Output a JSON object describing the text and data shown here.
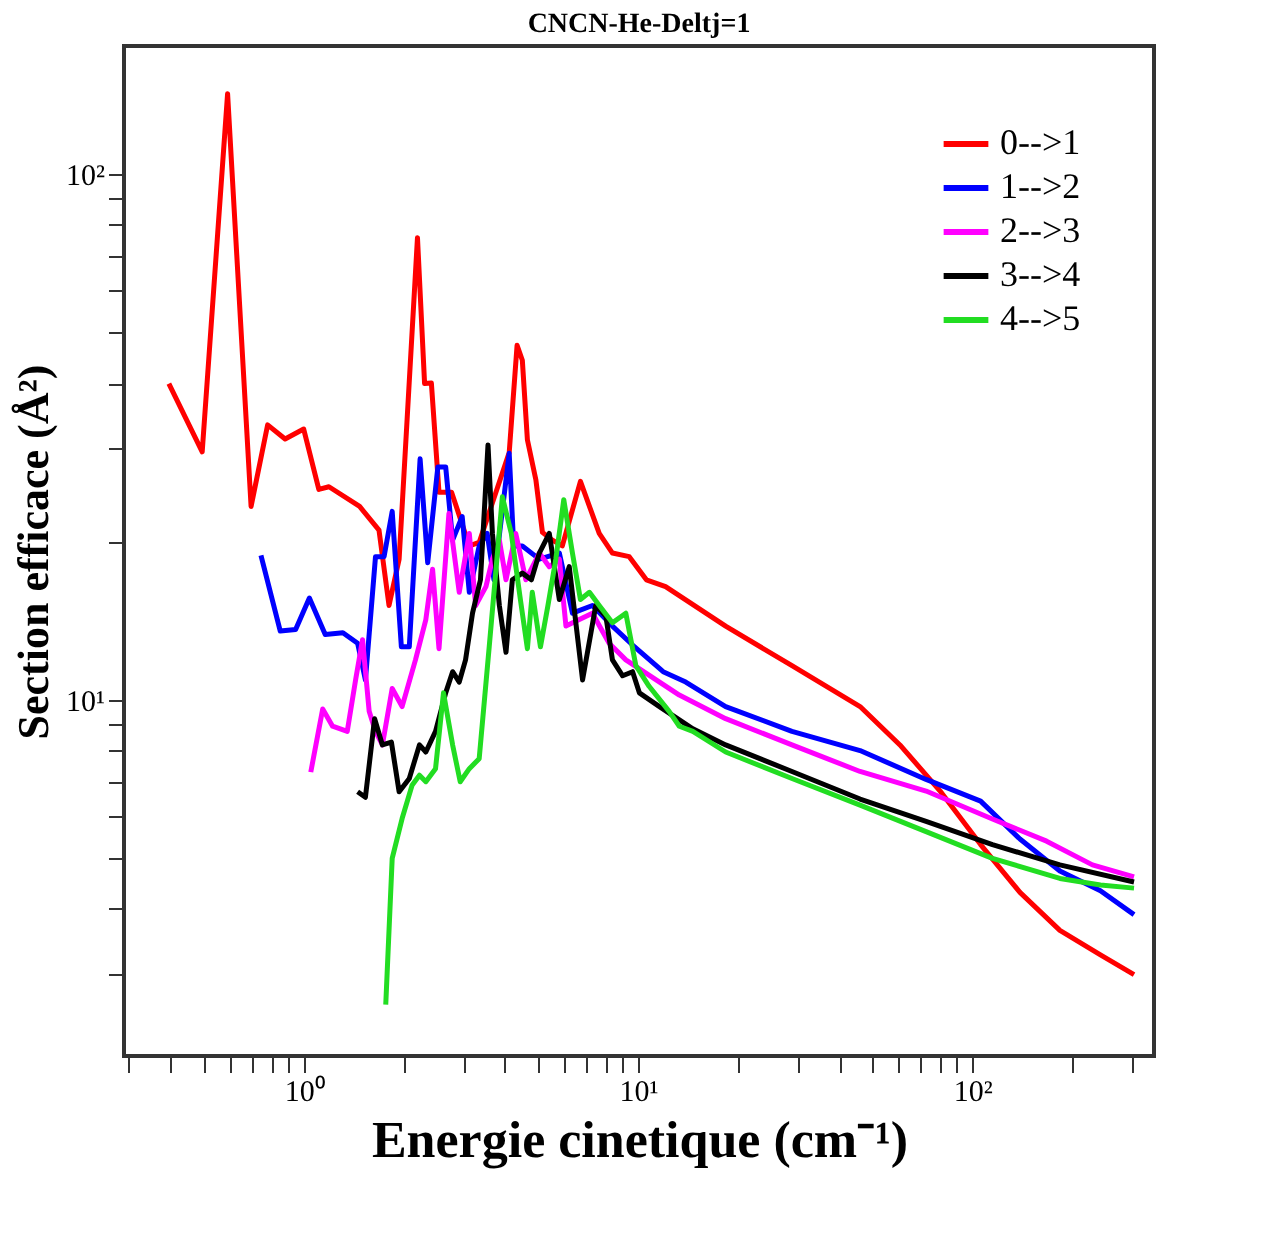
{
  "chart_data": {
    "type": "line",
    "title": "CNCN-He-Deltj=1",
    "xlabel": "Energie cinetique (cm⁻¹)",
    "ylabel": "Section efficace (Å²)",
    "log": "xy",
    "xlim": [
      0.29,
      350
    ],
    "ylim": [
      2.1,
      175
    ],
    "xticks": [
      {
        "value": 0.3,
        "label": null
      },
      {
        "value": 0.4,
        "label": null
      },
      {
        "value": 0.5,
        "label": null
      },
      {
        "value": 0.6,
        "label": null
      },
      {
        "value": 0.7,
        "label": null
      },
      {
        "value": 0.8,
        "label": null
      },
      {
        "value": 0.9,
        "label": null
      },
      {
        "value": 1,
        "label": "10⁰"
      },
      {
        "value": 2,
        "label": null
      },
      {
        "value": 3,
        "label": null
      },
      {
        "value": 4,
        "label": null
      },
      {
        "value": 5,
        "label": null
      },
      {
        "value": 6,
        "label": null
      },
      {
        "value": 7,
        "label": null
      },
      {
        "value": 8,
        "label": null
      },
      {
        "value": 9,
        "label": null
      },
      {
        "value": 10,
        "label": "10¹"
      },
      {
        "value": 20,
        "label": null
      },
      {
        "value": 30,
        "label": null
      },
      {
        "value": 40,
        "label": null
      },
      {
        "value": 50,
        "label": null
      },
      {
        "value": 60,
        "label": null
      },
      {
        "value": 70,
        "label": null
      },
      {
        "value": 80,
        "label": null
      },
      {
        "value": 90,
        "label": null
      },
      {
        "value": 100,
        "label": "10²"
      },
      {
        "value": 200,
        "label": null
      },
      {
        "value": 300,
        "label": null
      }
    ],
    "yticks": [
      {
        "value": 3,
        "label": null
      },
      {
        "value": 4,
        "label": null
      },
      {
        "value": 5,
        "label": null
      },
      {
        "value": 6,
        "label": null
      },
      {
        "value": 7,
        "label": null
      },
      {
        "value": 8,
        "label": null
      },
      {
        "value": 9,
        "label": null
      },
      {
        "value": 10,
        "label": "10¹"
      },
      {
        "value": 20,
        "label": null
      },
      {
        "value": 30,
        "label": null
      },
      {
        "value": 40,
        "label": null
      },
      {
        "value": 50,
        "label": null
      },
      {
        "value": 60,
        "label": null
      },
      {
        "value": 70,
        "label": null
      },
      {
        "value": 80,
        "label": null
      },
      {
        "value": 90,
        "label": null
      },
      {
        "value": 100,
        "label": "10²"
      }
    ],
    "grid": false,
    "legend": "top right",
    "marker": "none",
    "line_style": "solid",
    "series": [
      {
        "name": "0-->1",
        "color": "#ff0000",
        "x": [
          0.395,
          0.497,
          0.592,
          0.696,
          0.78,
          0.88,
          1.0,
          1.11,
          1.19,
          1.47,
          1.68,
          1.8,
          1.93,
          2.19,
          2.3,
          2.41,
          2.54,
          2.77,
          3.13,
          3.35,
          3.59,
          4.12,
          4.35,
          4.51,
          4.67,
          4.95,
          5.18,
          5.55,
          5.94,
          6.73,
          7.66,
          8.39,
          9.42,
          10.6,
          12.1,
          18.3,
          28.9,
          46.2,
          60.8,
          80.2,
          106,
          139,
          183,
          242,
          305
        ],
        "values": [
          39.9,
          29.6,
          142,
          23.3,
          33.3,
          31.3,
          32.7,
          25.1,
          25.4,
          23.3,
          21.0,
          15.1,
          18.5,
          75.6,
          39.9,
          40,
          24.8,
          24.8,
          19.6,
          19.9,
          22.7,
          29.5,
          47.2,
          44.2,
          31.2,
          26.2,
          20.8,
          20.1,
          19.6,
          26.0,
          20.7,
          19.0,
          18.7,
          16.9,
          16.4,
          13.8,
          11.6,
          9.7,
          8.2,
          6.7,
          5.3,
          4.3,
          3.64,
          3.27,
          3.0
        ]
      },
      {
        "name": "1-->2",
        "color": "#0000ff",
        "x": [
          0.745,
          0.851,
          0.946,
          1.04,
          1.16,
          1.31,
          1.45,
          1.53,
          1.64,
          1.74,
          1.84,
          1.96,
          2.07,
          2.23,
          2.35,
          2.52,
          2.66,
          2.79,
          2.98,
          3.13,
          3.35,
          3.54,
          3.71,
          4.12,
          4.25,
          4.51,
          5.07,
          5.82,
          6.37,
          7.31,
          8.39,
          9.64,
          11.9,
          13.9,
          18.3,
          28.9,
          46.2,
          72.8,
          106,
          139,
          183,
          242,
          305
        ],
        "values": [
          18.8,
          13.5,
          13.6,
          15.6,
          13.3,
          13.4,
          12.8,
          10.9,
          18.7,
          18.7,
          22.8,
          12.6,
          12.6,
          28.7,
          18.2,
          27.7,
          27.7,
          20.1,
          22.3,
          16.0,
          19.6,
          20.7,
          16.9,
          29.4,
          19.6,
          19.6,
          18.5,
          19.0,
          14.6,
          15.1,
          13.8,
          12.7,
          11.3,
          10.8,
          9.7,
          8.7,
          8.0,
          7.05,
          6.41,
          5.43,
          4.72,
          4.33,
          3.9
        ]
      },
      {
        "name": "2-->3",
        "color": "#ff00ff",
        "x": [
          1.05,
          1.14,
          1.22,
          1.35,
          1.43,
          1.5,
          1.57,
          1.64,
          1.72,
          1.84,
          1.97,
          2.16,
          2.32,
          2.43,
          2.54,
          2.72,
          2.92,
          3.13,
          3.27,
          3.51,
          3.67,
          3.85,
          4.03,
          4.31,
          4.62,
          5.07,
          5.43,
          5.82,
          6.09,
          6.68,
          7.31,
          8.2,
          9.2,
          13.3,
          18.3,
          28.9,
          46.2,
          72.8,
          115,
          167,
          229,
          305
        ],
        "values": [
          7.28,
          9.6,
          8.9,
          8.7,
          10.9,
          13.0,
          9.5,
          8.7,
          8.2,
          10.5,
          9.7,
          11.9,
          14.2,
          17.7,
          12.5,
          22.6,
          16.0,
          20.7,
          15.1,
          16.4,
          18.5,
          20.1,
          16.9,
          20.7,
          16.9,
          19.0,
          17.9,
          18.5,
          13.8,
          14.2,
          14.6,
          12.8,
          11.9,
          10.2,
          9.2,
          8.2,
          7.3,
          6.7,
          5.93,
          5.38,
          4.85,
          4.6
        ]
      },
      {
        "name": "3-->4",
        "color": "#000000",
        "x": [
          1.45,
          1.53,
          1.63,
          1.72,
          1.83,
          1.93,
          2.07,
          2.22,
          2.32,
          2.48,
          2.66,
          2.79,
          2.92,
          3.05,
          3.2,
          3.38,
          3.56,
          3.67,
          3.85,
          4.03,
          4.21,
          4.51,
          4.8,
          5.07,
          5.43,
          5.82,
          6.23,
          6.83,
          7.48,
          8.02,
          8.39,
          9.0,
          9.64,
          10.1,
          11.6,
          14.6,
          18.3,
          28.9,
          46.2,
          72.8,
          115,
          183,
          305
        ],
        "values": [
          6.68,
          6.52,
          9.2,
          8.2,
          8.3,
          6.68,
          7.08,
          8.2,
          7.95,
          8.7,
          10.3,
          11.3,
          10.8,
          11.9,
          14.6,
          16.9,
          30.5,
          20.7,
          15.1,
          12.3,
          16.9,
          17.4,
          16.9,
          19.0,
          20.7,
          15.5,
          17.9,
          10.9,
          15.1,
          14.4,
          11.9,
          11.1,
          11.3,
          10.3,
          9.7,
          8.8,
          8.2,
          7.3,
          6.47,
          5.87,
          5.3,
          4.85,
          4.5
        ]
      },
      {
        "name": "4-->5",
        "color": "#22dd22",
        "x": [
          1.76,
          1.84,
          1.97,
          2.11,
          2.22,
          2.32,
          2.48,
          2.62,
          2.79,
          2.94,
          3.13,
          3.35,
          3.59,
          3.93,
          4.18,
          4.45,
          4.67,
          4.83,
          5.11,
          5.38,
          5.68,
          6.0,
          6.37,
          6.73,
          7.16,
          7.66,
          8.39,
          9.2,
          9.86,
          10.8,
          12.4,
          13.3,
          14.6,
          18.3,
          28.9,
          46.2,
          72.8,
          115,
          183,
          242,
          305
        ],
        "values": [
          2.63,
          4.99,
          5.94,
          6.87,
          7.18,
          6.98,
          7.39,
          10.3,
          8.2,
          6.98,
          7.39,
          7.72,
          12.6,
          24.3,
          20.7,
          15.5,
          12.5,
          16.0,
          12.6,
          15.1,
          18.5,
          24.0,
          19.0,
          15.5,
          16.0,
          15.1,
          14.0,
          14.6,
          11.6,
          10.6,
          9.5,
          8.9,
          8.7,
          7.95,
          7.08,
          6.3,
          5.61,
          4.99,
          4.57,
          4.44,
          4.38
        ]
      }
    ]
  }
}
